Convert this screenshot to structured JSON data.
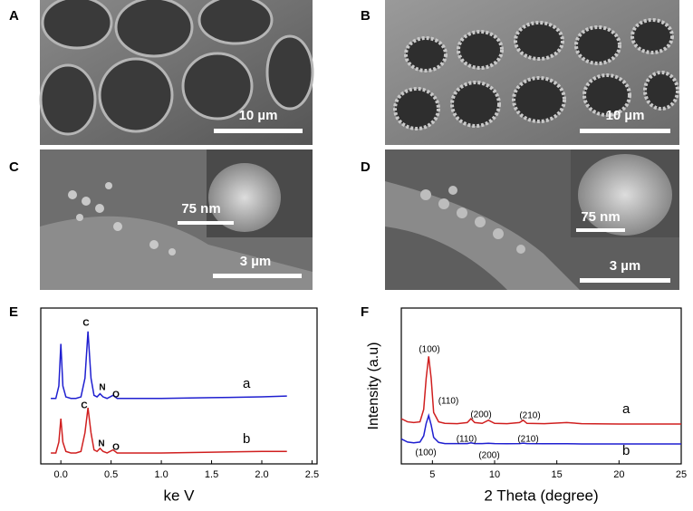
{
  "panels": [
    {
      "label": "A",
      "scale_bar": "10 µm"
    },
    {
      "label": "B",
      "scale_bar": "10 µm"
    },
    {
      "label": "C",
      "scale_bar": "3 µm",
      "inset_scale_bar": "75 nm"
    },
    {
      "label": "D",
      "scale_bar": "3 µm",
      "inset_scale_bar": "75 nm"
    }
  ],
  "chart_data": [
    {
      "type": "line",
      "label": "E",
      "xlabel": "ke V",
      "x": [
        -0.1,
        -0.05,
        -0.02,
        0,
        0.02,
        0.05,
        0.1,
        0.15,
        0.2,
        0.24,
        0.27,
        0.3,
        0.33,
        0.36,
        0.39,
        0.42,
        0.46,
        0.52,
        0.56,
        0.6,
        0.8,
        1.0,
        1.5,
        2.0,
        2.25
      ],
      "series": [
        {
          "name": "a",
          "color": "#1f1fd0",
          "values": [
            42,
            42,
            50,
            77,
            50,
            43,
            42,
            42,
            43,
            55,
            85,
            55,
            44,
            43,
            45,
            43,
            42,
            44,
            42,
            42,
            42,
            42,
            42.5,
            43,
            43.5
          ]
        },
        {
          "name": "b",
          "color": "#d01f1f",
          "values": [
            7,
            7,
            14,
            29,
            14,
            8,
            7,
            7,
            8,
            20,
            36,
            20,
            9,
            8,
            10,
            8,
            7,
            9,
            7,
            7,
            7,
            7,
            7.5,
            8,
            8
          ]
        }
      ],
      "annotations": [
        "C",
        "N",
        "O",
        "C",
        "N",
        "O"
      ],
      "xlim": [
        -0.2,
        2.55
      ],
      "ylim": [
        0,
        100
      ],
      "xticks": [
        {
          "value": 0,
          "label": "0.0"
        },
        0.5,
        {
          "value": 1,
          "label": "1.0"
        },
        1.5,
        {
          "value": 2,
          "label": "2.0"
        },
        2.5
      ]
    },
    {
      "type": "line",
      "label": "F",
      "xlabel": "2 Theta (degree)",
      "ylabel": "Intensity (a.u)",
      "x": [
        2.5,
        3,
        3.5,
        4,
        4.3,
        4.5,
        4.7,
        4.9,
        5.1,
        5.5,
        6,
        7,
        7.8,
        8.1,
        8.4,
        9,
        9.5,
        10,
        11,
        12,
        12.3,
        12.6,
        14,
        15.8,
        17,
        20,
        25
      ],
      "series": [
        {
          "name": "a",
          "color": "#d01f1f",
          "values": [
            29,
            27,
            26.5,
            27,
            35,
            55,
            69,
            55,
            33,
            27,
            26,
            25.8,
            26.5,
            29,
            26.5,
            26,
            28,
            26,
            25.8,
            26.5,
            28,
            26,
            25.8,
            26.5,
            25.8,
            25.6,
            25.6
          ]
        },
        {
          "name": "b",
          "color": "#1f1fd0",
          "values": [
            16,
            14,
            13.5,
            14,
            18,
            26,
            31,
            25,
            17,
            13.8,
            13,
            13,
            13,
            13.5,
            13,
            13,
            13.2,
            13,
            12.9,
            13,
            13.3,
            13,
            12.9,
            12.9,
            12.8,
            12.8,
            12.8
          ]
        }
      ],
      "annotations": [
        "(100)",
        "(110)",
        "(200)",
        "(210)",
        "(100)",
        "(110)",
        "(200)",
        "(210)"
      ],
      "xlim": [
        2.5,
        25
      ],
      "ylim": [
        0,
        100
      ],
      "xticks": [
        5,
        10,
        15,
        20,
        25
      ]
    }
  ]
}
